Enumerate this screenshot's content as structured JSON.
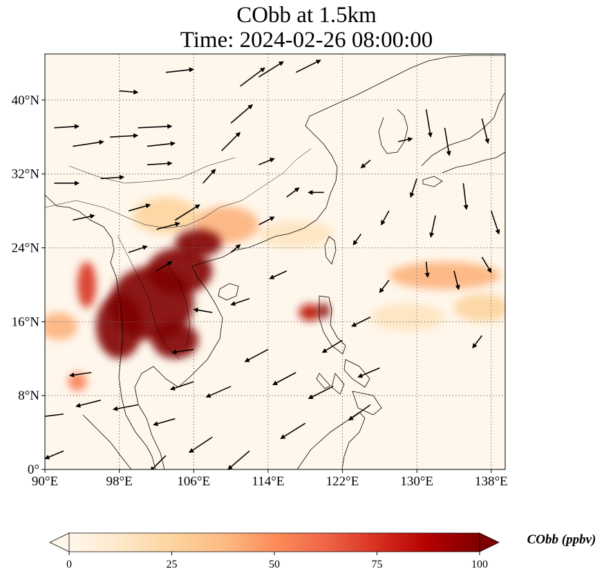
{
  "title_line1": "CObb at 1.5km",
  "title_line2": "Time: 2024-02-26 08:00:00",
  "variable": "CObb",
  "height": "1.5km",
  "time": "2024-02-26 08:00:00",
  "map": {
    "lon_range": [
      90,
      139.5
    ],
    "lat_range": [
      0,
      45
    ],
    "x_ticks": [
      {
        "value": 90,
        "label": "90°E"
      },
      {
        "value": 98,
        "label": "98°E"
      },
      {
        "value": 106,
        "label": "106°E"
      },
      {
        "value": 114,
        "label": "114°E"
      },
      {
        "value": 122,
        "label": "122°E"
      },
      {
        "value": 130,
        "label": "130°E"
      },
      {
        "value": 138,
        "label": "138°E"
      }
    ],
    "y_ticks": [
      {
        "value": 0,
        "label": "0°"
      },
      {
        "value": 8,
        "label": "8°N"
      },
      {
        "value": 16,
        "label": "16°N"
      },
      {
        "value": 24,
        "label": "24°N"
      },
      {
        "value": 32,
        "label": "32°N"
      },
      {
        "value": 40,
        "label": "40°N"
      }
    ],
    "gridlines": "dotted",
    "plumes": [
      {
        "lon": 101.5,
        "lat": 18.0,
        "value": 100,
        "spread_lon": 4.5,
        "spread_lat": 4.0
      },
      {
        "lon": 104.5,
        "lat": 21.5,
        "value": 100,
        "spread_lon": 3.5,
        "spread_lat": 2.5
      },
      {
        "lon": 106.5,
        "lat": 24.5,
        "value": 100,
        "spread_lon": 2.5,
        "spread_lat": 1.5
      },
      {
        "lon": 98.0,
        "lat": 15.5,
        "value": 100,
        "spread_lon": 2.5,
        "spread_lat": 3.5
      },
      {
        "lon": 104.0,
        "lat": 14.0,
        "value": 100,
        "spread_lon": 2.5,
        "spread_lat": 2.0
      },
      {
        "lon": 94.5,
        "lat": 20.0,
        "value": 75,
        "spread_lon": 1.0,
        "spread_lat": 2.5
      },
      {
        "lon": 93.5,
        "lat": 9.5,
        "value": 55,
        "spread_lon": 1.0,
        "spread_lat": 1.0
      },
      {
        "lon": 91.5,
        "lat": 15.5,
        "value": 40,
        "spread_lon": 2.0,
        "spread_lat": 1.5
      },
      {
        "lon": 109.5,
        "lat": 26.5,
        "value": 40,
        "spread_lon": 3.5,
        "spread_lat": 2.0
      },
      {
        "lon": 118.5,
        "lat": 17.0,
        "value": 85,
        "spread_lon": 1.2,
        "spread_lat": 0.9
      },
      {
        "lon": 120.0,
        "lat": 17.2,
        "value": 100,
        "spread_lon": 0.6,
        "spread_lat": 0.8
      },
      {
        "lon": 133.0,
        "lat": 21.0,
        "value": 40,
        "spread_lon": 6.0,
        "spread_lat": 1.5
      },
      {
        "lon": 137.0,
        "lat": 17.5,
        "value": 25,
        "spread_lon": 3.0,
        "spread_lat": 1.5
      },
      {
        "lon": 129.0,
        "lat": 16.5,
        "value": 15,
        "spread_lon": 4.0,
        "spread_lat": 1.5
      },
      {
        "lon": 103.0,
        "lat": 27.5,
        "value": 25,
        "spread_lon": 3.5,
        "spread_lat": 2.0
      },
      {
        "lon": 117.0,
        "lat": 25.5,
        "value": 15,
        "spread_lon": 4.0,
        "spread_lat": 1.5
      }
    ],
    "wind_arrows": [
      {
        "lon": 91,
        "lat": 37,
        "u": 1.6,
        "v": 0.1
      },
      {
        "lon": 93,
        "lat": 35,
        "u": 2.0,
        "v": 0.3
      },
      {
        "lon": 97,
        "lat": 36,
        "u": 1.8,
        "v": 0.1
      },
      {
        "lon": 100,
        "lat": 37,
        "u": 2.2,
        "v": 0.1
      },
      {
        "lon": 101,
        "lat": 35,
        "u": 1.8,
        "v": 0.2
      },
      {
        "lon": 96,
        "lat": 31.5,
        "u": 1.5,
        "v": 0.1
      },
      {
        "lon": 101,
        "lat": 33,
        "u": 1.6,
        "v": 0.1
      },
      {
        "lon": 91,
        "lat": 31,
        "u": 1.6,
        "v": 0.0
      },
      {
        "lon": 93,
        "lat": 27,
        "u": 1.4,
        "v": 0.3
      },
      {
        "lon": 99,
        "lat": 28,
        "u": 1.4,
        "v": 0.4
      },
      {
        "lon": 102,
        "lat": 26,
        "u": 1.5,
        "v": 0.4
      },
      {
        "lon": 104,
        "lat": 27,
        "u": 1.6,
        "v": 1.0
      },
      {
        "lon": 107,
        "lat": 31,
        "u": 0.8,
        "v": 0.9
      },
      {
        "lon": 109,
        "lat": 34.5,
        "u": 1.2,
        "v": 1.2
      },
      {
        "lon": 110,
        "lat": 37.5,
        "u": 1.4,
        "v": 1.2
      },
      {
        "lon": 111,
        "lat": 41.5,
        "u": 1.6,
        "v": 1.2
      },
      {
        "lon": 113,
        "lat": 42.5,
        "u": 1.6,
        "v": 1.0
      },
      {
        "lon": 117,
        "lat": 43,
        "u": 1.6,
        "v": 0.8
      },
      {
        "lon": 103,
        "lat": 43,
        "u": 1.8,
        "v": 0.2
      },
      {
        "lon": 98,
        "lat": 41,
        "u": 1.2,
        "v": -0.1
      },
      {
        "lon": 113,
        "lat": 33,
        "u": 1.0,
        "v": 0.4
      },
      {
        "lon": 116,
        "lat": 29.5,
        "u": 0.8,
        "v": 0.6
      },
      {
        "lon": 113,
        "lat": 26.5,
        "u": 1.0,
        "v": 0.5
      },
      {
        "lon": 120,
        "lat": 30,
        "u": -1.0,
        "v": 0.0
      },
      {
        "lon": 125,
        "lat": 33.5,
        "u": -0.6,
        "v": -0.5
      },
      {
        "lon": 128,
        "lat": 35.5,
        "u": 0.9,
        "v": 0.2
      },
      {
        "lon": 131,
        "lat": 39,
        "u": 0.3,
        "v": -1.8
      },
      {
        "lon": 133,
        "lat": 37,
        "u": 0.3,
        "v": -1.8
      },
      {
        "lon": 137,
        "lat": 38,
        "u": 0.4,
        "v": -1.6
      },
      {
        "lon": 135,
        "lat": 31,
        "u": 0.2,
        "v": -1.7
      },
      {
        "lon": 138,
        "lat": 28,
        "u": 0.5,
        "v": -1.5
      },
      {
        "lon": 132,
        "lat": 27.5,
        "u": -0.3,
        "v": -1.4
      },
      {
        "lon": 130,
        "lat": 31.5,
        "u": -0.4,
        "v": -1.2
      },
      {
        "lon": 127,
        "lat": 28,
        "u": -0.5,
        "v": -0.9
      },
      {
        "lon": 124,
        "lat": 25.5,
        "u": -0.5,
        "v": -0.7
      },
      {
        "lon": 131,
        "lat": 22.5,
        "u": 0.1,
        "v": -1.0
      },
      {
        "lon": 134,
        "lat": 21.5,
        "u": 0.3,
        "v": -1.2
      },
      {
        "lon": 137,
        "lat": 23,
        "u": 0.6,
        "v": -1.0
      },
      {
        "lon": 137,
        "lat": 14.5,
        "u": -0.6,
        "v": -0.8
      },
      {
        "lon": 127,
        "lat": 20.5,
        "u": -0.6,
        "v": -0.8
      },
      {
        "lon": 125,
        "lat": 16.5,
        "u": -1.2,
        "v": -0.6
      },
      {
        "lon": 122,
        "lat": 14,
        "u": -1.3,
        "v": -0.8
      },
      {
        "lon": 126,
        "lat": 11,
        "u": -1.4,
        "v": -0.6
      },
      {
        "lon": 125,
        "lat": 7,
        "u": -1.4,
        "v": -1.0
      },
      {
        "lon": 121,
        "lat": 9,
        "u": -1.6,
        "v": -0.8
      },
      {
        "lon": 117,
        "lat": 10.5,
        "u": -1.5,
        "v": -0.8
      },
      {
        "lon": 118,
        "lat": 5,
        "u": -1.6,
        "v": -1.0
      },
      {
        "lon": 114,
        "lat": 13,
        "u": -1.5,
        "v": -0.8
      },
      {
        "lon": 112,
        "lat": 18.5,
        "u": -1.2,
        "v": -0.4
      },
      {
        "lon": 116,
        "lat": 21.5,
        "u": -1.1,
        "v": -0.5
      },
      {
        "lon": 110,
        "lat": 9,
        "u": -1.6,
        "v": -0.7
      },
      {
        "lon": 108,
        "lat": 3.5,
        "u": -1.5,
        "v": -1.0
      },
      {
        "lon": 112,
        "lat": 2,
        "u": -1.4,
        "v": -1.2
      },
      {
        "lon": 104,
        "lat": 5.5,
        "u": -1.4,
        "v": -0.4
      },
      {
        "lon": 100,
        "lat": 7,
        "u": -1.6,
        "v": -0.3
      },
      {
        "lon": 96,
        "lat": 7.5,
        "u": -1.6,
        "v": -0.4
      },
      {
        "lon": 92,
        "lat": 6,
        "u": -1.6,
        "v": -0.2
      },
      {
        "lon": 95,
        "lat": 10.5,
        "u": -1.4,
        "v": -0.2
      },
      {
        "lon": 92,
        "lat": 2,
        "u": -1.2,
        "v": -0.5
      },
      {
        "lon": 103,
        "lat": 1.5,
        "u": -1.0,
        "v": -1.0
      },
      {
        "lon": 106,
        "lat": 13,
        "u": -1.4,
        "v": -0.2
      },
      {
        "lon": 108,
        "lat": 17,
        "u": -1.2,
        "v": 0.2
      },
      {
        "lon": 106,
        "lat": 9.5,
        "u": -1.5,
        "v": -0.5
      },
      {
        "lon": 99,
        "lat": 23.5,
        "u": 1.2,
        "v": 0.4
      },
      {
        "lon": 102,
        "lat": 21.5,
        "u": 1.0,
        "v": 0.6
      },
      {
        "lon": 110,
        "lat": 23.5,
        "u": 0.6,
        "v": 0.5
      }
    ]
  },
  "colorbar": {
    "label": "CObb (ppbv)",
    "min": 0,
    "max": 100,
    "extend": "both",
    "ticks": [
      "0",
      "25",
      "50",
      "75",
      "100"
    ],
    "colors": [
      "#fff7ec",
      "#fee8c8",
      "#fdd49e",
      "#fdbb84",
      "#fc8d59",
      "#ef6548",
      "#d7301f",
      "#b30000",
      "#7f0000"
    ]
  }
}
